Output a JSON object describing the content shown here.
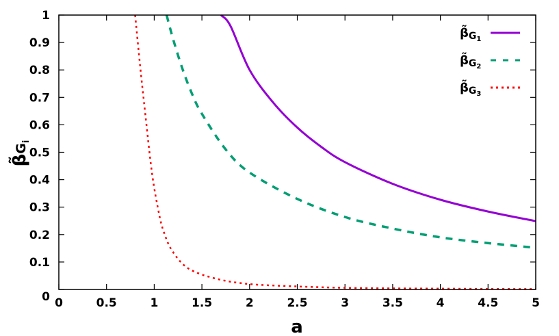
{
  "chart_data": {
    "type": "line",
    "title": "",
    "xlabel": "a",
    "ylabel": "β̃_{G_i}",
    "xlim": [
      0,
      5
    ],
    "ylim": [
      0,
      1
    ],
    "grid": false,
    "legend_position": "top-right",
    "x_ticks": [
      "0",
      "0.5",
      "1",
      "1.5",
      "2",
      "2.5",
      "3",
      "3.5",
      "4",
      "4.5",
      "5"
    ],
    "y_ticks": [
      "0",
      "0.1",
      "0.2",
      "0.3",
      "0.4",
      "0.5",
      "0.6",
      "0.7",
      "0.8",
      "0.9",
      "1"
    ],
    "series": [
      {
        "name": "β̃G1",
        "label_main": "β̃",
        "label_sub": "G",
        "label_index": "1",
        "color": "#9400d3",
        "style": "solid",
        "x": [
          1.7,
          1.8,
          2.0,
          2.25,
          2.5,
          2.75,
          3.0,
          3.5,
          4.0,
          4.5,
          5.0
        ],
        "y": [
          1.0,
          0.96,
          0.8,
          0.68,
          0.59,
          0.52,
          0.464,
          0.385,
          0.327,
          0.284,
          0.249
        ]
      },
      {
        "name": "β̃G2",
        "label_main": "β̃",
        "label_sub": "G",
        "label_index": "2",
        "color": "#009e73",
        "style": "dashed",
        "x": [
          1.13,
          1.2,
          1.3,
          1.4,
          1.5,
          1.75,
          2.0,
          2.5,
          3.0,
          3.5,
          4.0,
          4.5,
          5.0
        ],
        "y": [
          1.0,
          0.91,
          0.8,
          0.71,
          0.64,
          0.51,
          0.426,
          0.33,
          0.264,
          0.222,
          0.19,
          0.169,
          0.152
        ]
      },
      {
        "name": "β̃G3",
        "label_main": "β̃",
        "label_sub": "G",
        "label_index": "3",
        "color": "#ff0000",
        "style": "dotted",
        "x": [
          0.8,
          0.855,
          0.9,
          0.976,
          1.047,
          1.1,
          1.19,
          1.356,
          1.64,
          1.99,
          2.5,
          3.0,
          3.5,
          4.0,
          4.5,
          5.0
        ],
        "y": [
          1.0,
          0.805,
          0.66,
          0.426,
          0.282,
          0.21,
          0.14,
          0.077,
          0.04,
          0.02,
          0.011,
          0.006,
          0.004,
          0.003,
          0.002,
          0.0015
        ]
      }
    ]
  }
}
